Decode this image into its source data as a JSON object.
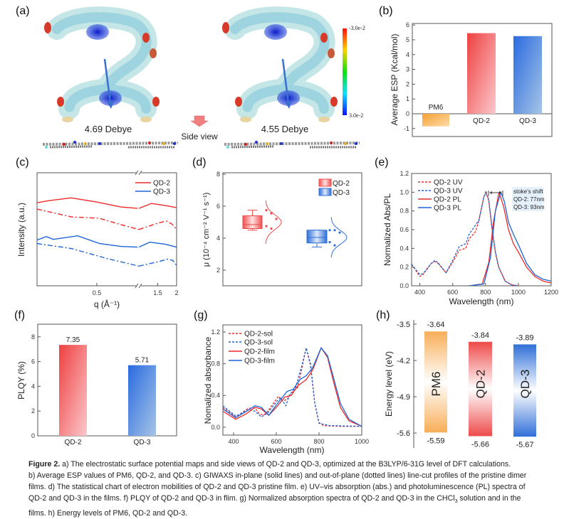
{
  "panel_labels": {
    "a": "(a)",
    "b": "(b)",
    "c": "(c)",
    "d": "(d)",
    "e": "(e)",
    "f": "(f)",
    "g": "(g)",
    "h": "(h)"
  },
  "panel_a": {
    "dipole_qd2": "4.69 Debye",
    "dipole_qd3": "4.55 Debye",
    "side_view_label": "Side view",
    "colorbar_top": "-3.0e-2",
    "colorbar_bottom": "3.0e-2",
    "colors": {
      "esp_surface": "#bfe6e8",
      "negative": "#d83a2a",
      "positive": "#1a2fd0",
      "dipole_arrow": "#3a6fd0",
      "side_view_arrow": "#f08080"
    }
  },
  "chart_data": [
    {
      "panel": "b",
      "type": "bar",
      "categories": [
        "PM6",
        "QD-2",
        "QD-3"
      ],
      "values": [
        -0.85,
        5.45,
        5.25
      ],
      "ylabel": "Average ESP (Kcal/mol)",
      "ylim": [
        -1.5,
        6
      ],
      "yticks": [
        "-1",
        "0",
        "1",
        "2",
        "3",
        "4",
        "5",
        "6"
      ],
      "colors": [
        "#f5a040",
        "#ee4a4a",
        "#2f6fd8"
      ]
    },
    {
      "panel": "c",
      "type": "line",
      "xlabel": "q (Å⁻¹)",
      "ylabel": "Intensity (a.u.)",
      "xticks": [
        "0.5",
        "1.5",
        "2"
      ],
      "x_axis_break": true,
      "ylim": [
        0,
        16
      ],
      "legend": [
        "QD-2",
        "QD-3"
      ],
      "legend_placement": "top-right",
      "series": [
        {
          "name": "QD-2",
          "style": "solid",
          "color": "#ee2a2a",
          "points": [
            [
              0.25,
              11.8
            ],
            [
              0.3,
              12.1
            ],
            [
              0.393,
              12.5
            ],
            [
              0.5,
              11.9
            ],
            [
              0.6,
              11.2
            ],
            [
              0.67,
              11.0
            ],
            [
              1.0,
              11.0
            ],
            [
              1.33,
              11.7
            ],
            [
              1.7,
              11.4
            ],
            [
              2.0,
              11.1
            ]
          ]
        },
        {
          "name": "QD-2",
          "style": "dash-dot",
          "color": "#ee2a2a",
          "points": [
            [
              0.25,
              10.9
            ],
            [
              0.393,
              9.8
            ],
            [
              0.51,
              9.6
            ],
            [
              0.6,
              8.7
            ],
            [
              0.675,
              8.0
            ],
            [
              1.0,
              8.0
            ],
            [
              1.5,
              8.9
            ],
            [
              1.73,
              9.2
            ],
            [
              1.87,
              8.8
            ],
            [
              2.0,
              8.0
            ]
          ]
        },
        {
          "name": "QD-3",
          "style": "solid",
          "color": "#1e64d8",
          "points": [
            [
              0.25,
              6.5
            ],
            [
              0.289,
              7.0
            ],
            [
              0.318,
              6.6
            ],
            [
              0.42,
              7.1
            ],
            [
              0.512,
              6.0
            ],
            [
              0.6,
              5.6
            ],
            [
              0.67,
              5.5
            ],
            [
              1.0,
              5.5
            ],
            [
              1.29,
              6.2
            ],
            [
              1.7,
              5.9
            ],
            [
              2.0,
              5.5
            ]
          ]
        },
        {
          "name": "QD-3",
          "style": "dash-dot",
          "color": "#1e64d8",
          "points": [
            [
              0.25,
              6.0
            ],
            [
              0.393,
              5.3
            ],
            [
              0.54,
              3.9
            ],
            [
              0.675,
              2.8
            ],
            [
              1.0,
              2.8
            ],
            [
              1.5,
              3.4
            ],
            [
              1.77,
              3.8
            ],
            [
              1.9,
              3.6
            ],
            [
              2.0,
              2.9
            ]
          ]
        }
      ]
    },
    {
      "panel": "d",
      "type": "box",
      "ylabel": "μ (10⁻⁴ cm⁻² V⁻¹ s⁻¹)",
      "ylim": [
        1,
        8
      ],
      "yticks": [
        "2",
        "4",
        "6",
        "8"
      ],
      "legend": [
        "QD-2",
        "QD-3"
      ],
      "legend_placement": "top-right",
      "series": [
        {
          "name": "QD-2",
          "color": "#ee4a4a",
          "q1": 4.6,
          "median": 4.85,
          "q3": 5.4,
          "whisker_low": 4.5,
          "whisker_high": 5.75,
          "points": [
            5.75,
            5.55,
            5.2,
            4.75,
            4.6
          ],
          "dist_mean": 5.0,
          "dist_sd": 0.45
        },
        {
          "name": "QD-3",
          "color": "#2f6fd8",
          "q1": 3.7,
          "median": 4.05,
          "q3": 4.5,
          "whisker_low": 3.45,
          "whisker_high": 4.5,
          "points": [
            4.5,
            4.5,
            4.35,
            3.75,
            3.55
          ],
          "dist_mean": 4.05,
          "dist_sd": 0.42
        }
      ]
    },
    {
      "panel": "e",
      "type": "line",
      "xlabel": "Wavelength (nm)",
      "ylabel": "Normalized Abs/PL",
      "xlim": [
        350,
        1200
      ],
      "ylim": [
        0,
        1.2
      ],
      "xticks": [
        "400",
        "600",
        "800",
        "1000",
        "1200"
      ],
      "yticks": [
        "0.0",
        "0.2",
        "0.4",
        "0.6",
        "0.8",
        "1.0",
        "1.2"
      ],
      "legend_placement": "top-left",
      "annotation": [
        "stoke's shift",
        "QD-2: 77nm",
        "QD-3: 93nm"
      ],
      "series": [
        {
          "name": "QD-2 UV",
          "style": "dashed",
          "color": "#ee2a2a",
          "points": [
            [
              350,
              0.23
            ],
            [
              400,
              0.1
            ],
            [
              420,
              0.12
            ],
            [
              470,
              0.24
            ],
            [
              490,
              0.26
            ],
            [
              510,
              0.24
            ],
            [
              560,
              0.14
            ],
            [
              600,
              0.25
            ],
            [
              640,
              0.38
            ],
            [
              680,
              0.4
            ],
            [
              700,
              0.5
            ],
            [
              740,
              0.58
            ],
            [
              760,
              0.7
            ],
            [
              790,
              0.95
            ],
            [
              805,
              1.0
            ],
            [
              820,
              0.9
            ],
            [
              840,
              0.6
            ],
            [
              860,
              0.35
            ],
            [
              880,
              0.2
            ],
            [
              920,
              0.05
            ],
            [
              960,
              0.01
            ],
            [
              1000,
              0.0
            ]
          ]
        },
        {
          "name": "QD-3 UV",
          "style": "dashed",
          "color": "#1e64d8",
          "points": [
            [
              350,
              0.23
            ],
            [
              400,
              0.12
            ],
            [
              420,
              0.13
            ],
            [
              470,
              0.24
            ],
            [
              490,
              0.27
            ],
            [
              510,
              0.25
            ],
            [
              560,
              0.14
            ],
            [
              600,
              0.27
            ],
            [
              640,
              0.42
            ],
            [
              680,
              0.45
            ],
            [
              700,
              0.55
            ],
            [
              740,
              0.65
            ],
            [
              760,
              0.7
            ],
            [
              790,
              0.95
            ],
            [
              800,
              1.0
            ],
            [
              820,
              0.92
            ],
            [
              840,
              0.62
            ],
            [
              860,
              0.37
            ],
            [
              880,
              0.2
            ],
            [
              920,
              0.05
            ],
            [
              960,
              0.01
            ],
            [
              1000,
              0.0
            ]
          ]
        },
        {
          "name": "QD-2 PL",
          "style": "solid",
          "color": "#ee2a2a",
          "points": [
            [
              700,
              0.0
            ],
            [
              780,
              0.02
            ],
            [
              820,
              0.25
            ],
            [
              850,
              0.7
            ],
            [
              882,
              1.0
            ],
            [
              910,
              0.85
            ],
            [
              940,
              0.6
            ],
            [
              970,
              0.45
            ],
            [
              1000,
              0.36
            ],
            [
              1050,
              0.2
            ],
            [
              1100,
              0.1
            ],
            [
              1150,
              0.05
            ],
            [
              1200,
              0.03
            ]
          ]
        },
        {
          "name": "QD-3 PL",
          "style": "solid",
          "color": "#1e64d8",
          "points": [
            [
              700,
              0.0
            ],
            [
              790,
              0.02
            ],
            [
              830,
              0.3
            ],
            [
              860,
              0.8
            ],
            [
              893,
              1.0
            ],
            [
              915,
              0.9
            ],
            [
              940,
              0.68
            ],
            [
              970,
              0.55
            ],
            [
              1000,
              0.44
            ],
            [
              1050,
              0.24
            ],
            [
              1100,
              0.12
            ],
            [
              1150,
              0.07
            ],
            [
              1200,
              0.05
            ]
          ]
        }
      ]
    },
    {
      "panel": "f",
      "type": "bar",
      "categories": [
        "QD-2",
        "QD-3"
      ],
      "values": [
        7.35,
        5.71
      ],
      "data_labels": [
        "7.35",
        "5.71"
      ],
      "ylabel": "PLQY (%)",
      "ylim": [
        0,
        9
      ],
      "yticks": [
        "0",
        "2",
        "4",
        "6",
        "8"
      ],
      "colors": [
        "#ee4a4a",
        "#2f6fd8"
      ]
    },
    {
      "panel": "g",
      "type": "line",
      "xlabel": "Wavelength (nm)",
      "ylabel": "Nomalized absorbance",
      "xlim": [
        350,
        1000
      ],
      "ylim": [
        -0.1,
        1.29
      ],
      "xticks": [
        "400",
        "600",
        "800",
        "1000"
      ],
      "yticks": [
        "0.0",
        "0.4",
        "0.8",
        "1.2"
      ],
      "legend_placement": "top-left",
      "series": [
        {
          "name": "QD-2-sol",
          "style": "dashed",
          "color": "#ee2a2a",
          "points": [
            [
              350,
              0.25
            ],
            [
              410,
              0.13
            ],
            [
              470,
              0.24
            ],
            [
              500,
              0.24
            ],
            [
              520,
              0.17
            ],
            [
              540,
              0.15
            ],
            [
              560,
              0.2
            ],
            [
              610,
              0.39
            ],
            [
              630,
              0.33
            ],
            [
              650,
              0.35
            ],
            [
              670,
              0.43
            ],
            [
              700,
              0.5
            ],
            [
              720,
              0.75
            ],
            [
              740,
              1.0
            ],
            [
              760,
              0.78
            ],
            [
              780,
              0.3
            ],
            [
              800,
              0.06
            ],
            [
              820,
              0.02
            ],
            [
              900,
              0.01
            ],
            [
              1000,
              0.01
            ]
          ]
        },
        {
          "name": "QD-3-sol",
          "style": "dashed",
          "color": "#1e64d8",
          "points": [
            [
              350,
              0.27
            ],
            [
              410,
              0.14
            ],
            [
              470,
              0.22
            ],
            [
              500,
              0.2
            ],
            [
              530,
              0.13
            ],
            [
              560,
              0.18
            ],
            [
              600,
              0.32
            ],
            [
              620,
              0.37
            ],
            [
              645,
              0.27
            ],
            [
              660,
              0.4
            ],
            [
              690,
              0.5
            ],
            [
              720,
              0.78
            ],
            [
              740,
              1.0
            ],
            [
              760,
              0.8
            ],
            [
              780,
              0.3
            ],
            [
              800,
              0.05
            ],
            [
              850,
              0.02
            ],
            [
              1000,
              0.01
            ]
          ]
        },
        {
          "name": "QD-2-film",
          "style": "solid",
          "color": "#ee2a2a",
          "points": [
            [
              350,
              0.2
            ],
            [
              410,
              0.1
            ],
            [
              460,
              0.17
            ],
            [
              500,
              0.25
            ],
            [
              530,
              0.23
            ],
            [
              565,
              0.15
            ],
            [
              600,
              0.25
            ],
            [
              640,
              0.38
            ],
            [
              670,
              0.4
            ],
            [
              700,
              0.52
            ],
            [
              740,
              0.6
            ],
            [
              770,
              0.72
            ],
            [
              810,
              1.0
            ],
            [
              840,
              0.88
            ],
            [
              870,
              0.55
            ],
            [
              900,
              0.25
            ],
            [
              940,
              0.08
            ],
            [
              1000,
              0.01
            ]
          ]
        },
        {
          "name": "QD-3-film",
          "style": "solid",
          "color": "#1e64d8",
          "points": [
            [
              350,
              0.23
            ],
            [
              410,
              0.12
            ],
            [
              460,
              0.2
            ],
            [
              500,
              0.27
            ],
            [
              530,
              0.25
            ],
            [
              565,
              0.15
            ],
            [
              600,
              0.28
            ],
            [
              650,
              0.45
            ],
            [
              680,
              0.48
            ],
            [
              710,
              0.6
            ],
            [
              740,
              0.65
            ],
            [
              770,
              0.75
            ],
            [
              810,
              1.0
            ],
            [
              840,
              0.9
            ],
            [
              870,
              0.6
            ],
            [
              900,
              0.3
            ],
            [
              940,
              0.1
            ],
            [
              1000,
              0.01
            ]
          ]
        }
      ]
    },
    {
      "panel": "h",
      "type": "bar",
      "categories": [
        "PM6",
        "QD-2",
        "QD-3"
      ],
      "lumo": [
        -3.64,
        -3.84,
        -3.89
      ],
      "homo": [
        -5.59,
        -5.66,
        -5.67
      ],
      "lumo_labels": [
        "-3.64",
        "-3.84",
        "-3.89"
      ],
      "homo_labels": [
        "-5.59",
        "-5.66",
        "-5.67"
      ],
      "ylabel": "Energy level (eV)",
      "ylim": [
        -5.89,
        -3.42
      ],
      "yticks": [
        "-3.5",
        "-4.2",
        "-4.9",
        "-5.6"
      ],
      "colors": [
        "#f8ae58",
        "#ee4a4a",
        "#2f6fd8"
      ]
    }
  ],
  "caption": {
    "lead": "Figure 2.",
    "line1": " a) The electrostatic surface potential maps and side views of QD-2 and QD-3, optimized at the B3LYP/6-31G level of DFT calculations.",
    "line2": "b) Average ESP values of PM6, QD-2, and QD-3. c) GIWAXS in-plane (solid lines) and out-of-plane (dotted lines) line-cut profiles of the pristine dimer",
    "line3": "films. d) The statistical chart of electron mobilities of QD-2 and QD-3 pristine film. e) UV–vis absorption (abs.) and photoluminescence (PL) spectra of",
    "line4a": "QD-2 and QD-3 in the films. f) PLQY of QD-2 and QD-3 in flim. g) Normalized absorption spectra of QD-2 and QD-3 in the CHCl",
    "line4sub": "3",
    "line4b": " solution and in the",
    "line5": "films. h) Energy levels of PM6, QD-2 and QD-3."
  }
}
